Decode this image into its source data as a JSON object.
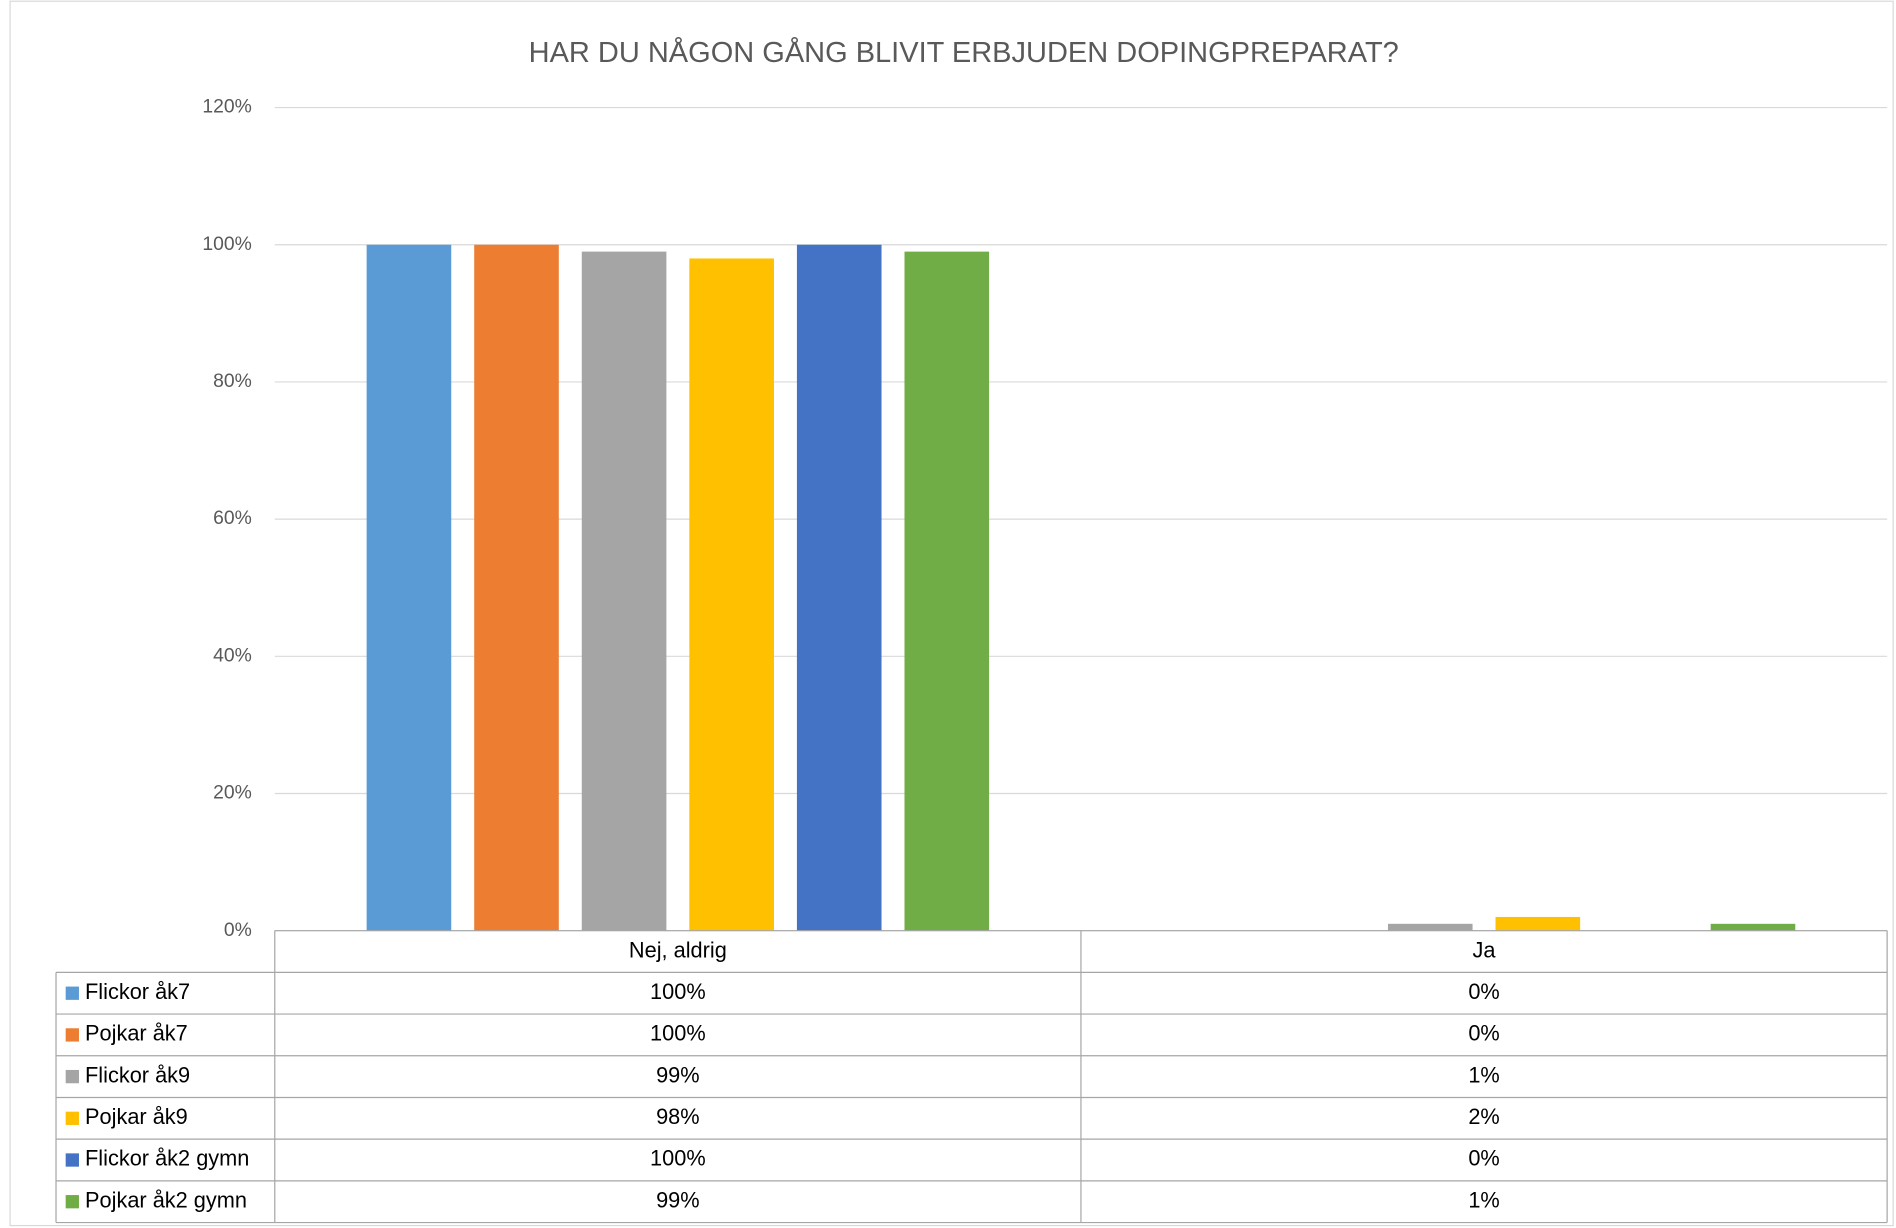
{
  "chart_data": {
    "type": "bar",
    "title": "HAR DU NÅGON GÅNG BLIVIT ERBJUDEN DOPINGPREPARAT?",
    "categories": [
      "Nej, aldrig",
      "Ja"
    ],
    "series": [
      {
        "name": "Flickor åk7",
        "color": "#5b9bd5",
        "values": [
          100,
          0
        ],
        "value_labels": [
          "100%",
          "0%"
        ]
      },
      {
        "name": "Pojkar åk7",
        "color": "#ed7d31",
        "values": [
          100,
          0
        ],
        "value_labels": [
          "100%",
          "0%"
        ]
      },
      {
        "name": "Flickor åk9",
        "color": "#a5a5a5",
        "values": [
          99,
          1
        ],
        "value_labels": [
          "99%",
          "1%"
        ]
      },
      {
        "name": "Pojkar åk9",
        "color": "#ffc000",
        "values": [
          98,
          2
        ],
        "value_labels": [
          "98%",
          "2%"
        ]
      },
      {
        "name": "Flickor åk2 gymn",
        "color": "#4472c4",
        "values": [
          100,
          0
        ],
        "value_labels": [
          "100%",
          "0%"
        ]
      },
      {
        "name": "Pojkar åk2 gymn",
        "color": "#70ad47",
        "values": [
          99,
          1
        ],
        "value_labels": [
          "99%",
          "1%"
        ]
      }
    ],
    "ylim": [
      0,
      120
    ],
    "yticks": [
      {
        "value": 0,
        "label": "0%"
      },
      {
        "value": 20,
        "label": "20%"
      },
      {
        "value": 40,
        "label": "40%"
      },
      {
        "value": 60,
        "label": "60%"
      },
      {
        "value": 80,
        "label": "80%"
      },
      {
        "value": 100,
        "label": "100%"
      },
      {
        "value": 120,
        "label": "120%"
      }
    ],
    "grid": true
  }
}
